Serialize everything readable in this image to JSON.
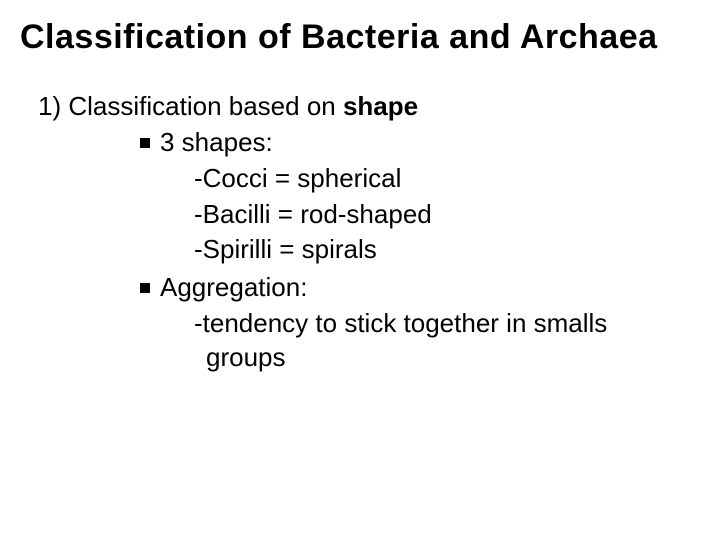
{
  "title": "Classification of Bacteria and Archaea",
  "section": {
    "number": "1)",
    "prefix": "Classification based on ",
    "emphasis": "shape"
  },
  "bullets": [
    {
      "label": "3 shapes:",
      "items": [
        "-Cocci = spherical",
        "-Bacilli = rod-shaped",
        "-Spirilli = spirals"
      ]
    },
    {
      "label": "Aggregation:",
      "items": [
        "-tendency to stick together in smalls",
        " groups"
      ]
    }
  ],
  "style": {
    "background_color": "#ffffff",
    "text_color": "#000000",
    "title_fontsize": 34,
    "body_fontsize": 26,
    "font_family": "Comic Sans MS"
  }
}
